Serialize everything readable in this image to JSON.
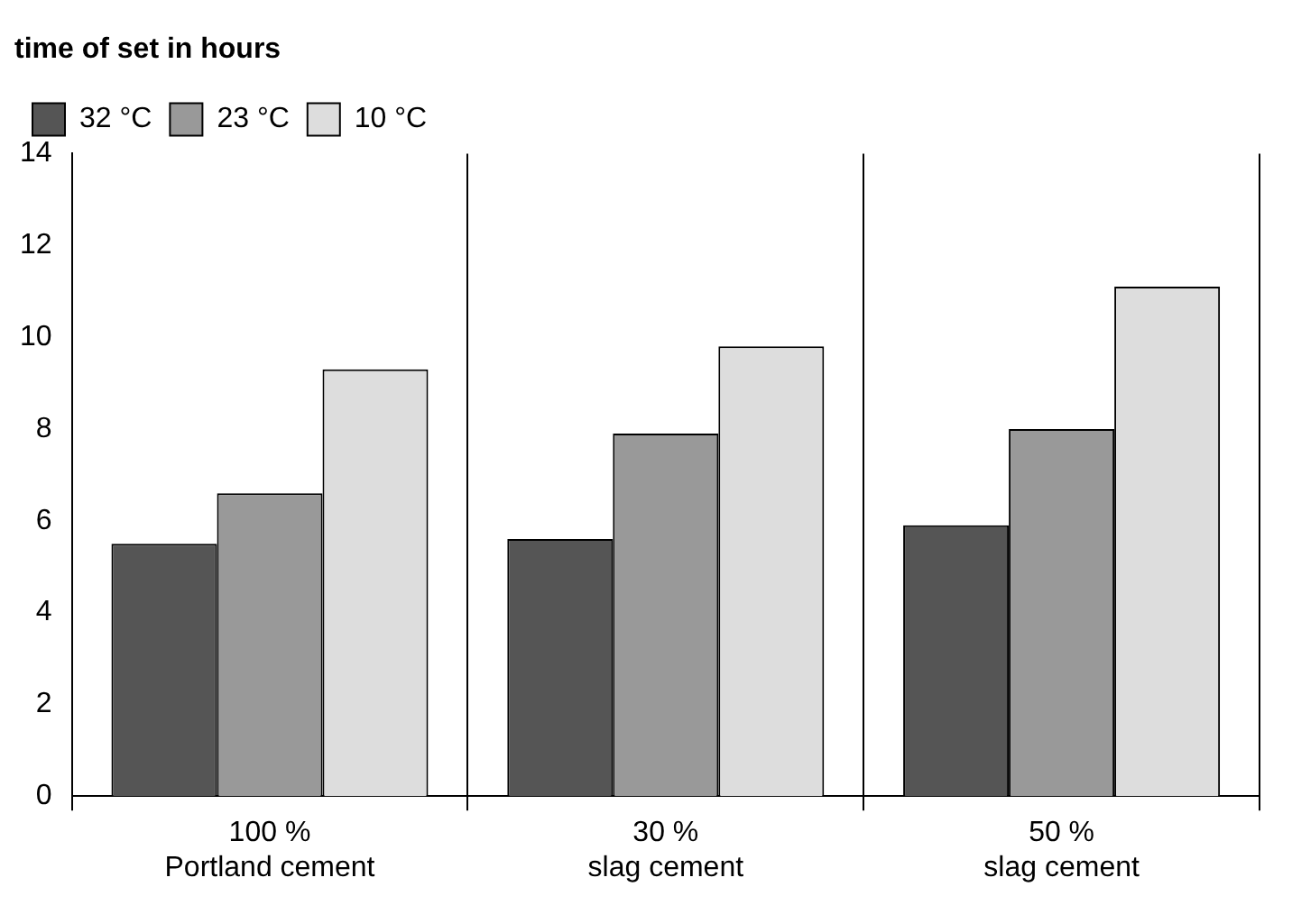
{
  "chart_data": {
    "type": "bar",
    "title": "time of set in hours",
    "categories": [
      "100 %\nPortland cement",
      "30 %\nslag cement",
      "50 %\nslag cement"
    ],
    "series": [
      {
        "name": "32 °C",
        "color": "#555555",
        "values": [
          5.5,
          5.6,
          5.9
        ]
      },
      {
        "name": "23 °C",
        "color": "#999999",
        "values": [
          6.6,
          7.9,
          8.0
        ]
      },
      {
        "name": "10 °C",
        "color": "#dddddd",
        "values": [
          9.3,
          9.8,
          11.1
        ]
      }
    ],
    "ylim": [
      0,
      14
    ],
    "yticks": [
      0,
      2,
      4,
      6,
      8,
      10,
      12,
      14
    ],
    "grid": "x",
    "legend": "top left"
  }
}
